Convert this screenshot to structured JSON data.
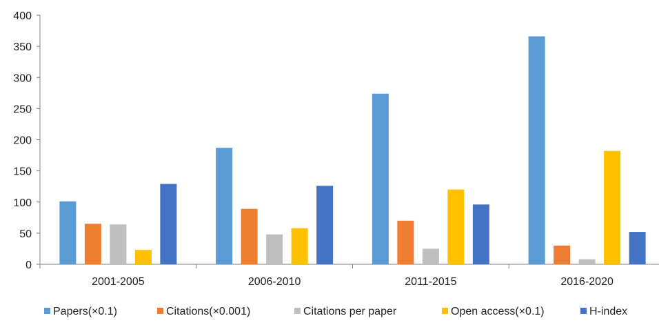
{
  "chart_data": {
    "type": "bar",
    "title": "",
    "xlabel": "",
    "ylabel": "",
    "ylim": [
      0,
      400
    ],
    "yticks": [
      0,
      50,
      100,
      150,
      200,
      250,
      300,
      350,
      400
    ],
    "grid": false,
    "legend_position": "bottom",
    "categories": [
      "2001-2005",
      "2006-2010",
      "2011-2015",
      "2016-2020"
    ],
    "series": [
      {
        "name": "Papers(×0.1)",
        "color": "#5B9BD5",
        "values": [
          101,
          187,
          274,
          366
        ]
      },
      {
        "name": "Citations(×0.001)",
        "color": "#ED7D31",
        "values": [
          65,
          89,
          70,
          30
        ]
      },
      {
        "name": "Citations per paper",
        "color": "#BFBFBF",
        "values": [
          64,
          48,
          25,
          8
        ]
      },
      {
        "name": "Open access(×0.1)",
        "color": "#FFC000",
        "values": [
          23,
          58,
          120,
          182
        ]
      },
      {
        "name": "H-index",
        "color": "#4472C4",
        "values": [
          129,
          126,
          96,
          52
        ]
      }
    ]
  }
}
